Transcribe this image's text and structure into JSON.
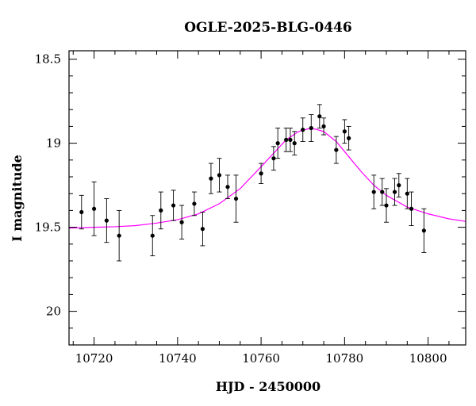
{
  "chart_data": {
    "type": "scatter",
    "title": "OGLE-2025-BLG-0446",
    "xlabel": "HJD - 2450000",
    "ylabel": "I magnitude",
    "xlim": [
      10714,
      10809
    ],
    "ylim": [
      20.2,
      18.45
    ],
    "y_inverted": true,
    "xticks": [
      10720,
      10740,
      10760,
      10780,
      10800
    ],
    "yticks": [
      18.5,
      19,
      19.5,
      20
    ],
    "ytick_labels": [
      "18.5",
      "19",
      "19.5",
      "20"
    ],
    "grid": false,
    "series": [
      {
        "kind": "points_with_errorbars",
        "color": "#000000",
        "points": [
          {
            "x": 10717,
            "y": 19.41,
            "err": 0.1
          },
          {
            "x": 10720,
            "y": 19.39,
            "err": 0.16
          },
          {
            "x": 10723,
            "y": 19.46,
            "err": 0.13
          },
          {
            "x": 10726,
            "y": 19.55,
            "err": 0.15
          },
          {
            "x": 10734,
            "y": 19.55,
            "err": 0.12
          },
          {
            "x": 10736,
            "y": 19.4,
            "err": 0.11
          },
          {
            "x": 10739,
            "y": 19.37,
            "err": 0.09
          },
          {
            "x": 10741,
            "y": 19.47,
            "err": 0.1
          },
          {
            "x": 10744,
            "y": 19.36,
            "err": 0.07
          },
          {
            "x": 10746,
            "y": 19.51,
            "err": 0.1
          },
          {
            "x": 10748,
            "y": 19.21,
            "err": 0.09
          },
          {
            "x": 10750,
            "y": 19.19,
            "err": 0.1
          },
          {
            "x": 10752,
            "y": 19.26,
            "err": 0.07
          },
          {
            "x": 10754,
            "y": 19.33,
            "err": 0.14
          },
          {
            "x": 10760,
            "y": 19.18,
            "err": 0.06
          },
          {
            "x": 10763,
            "y": 19.09,
            "err": 0.07
          },
          {
            "x": 10764,
            "y": 19.0,
            "err": 0.09
          },
          {
            "x": 10766,
            "y": 18.98,
            "err": 0.07
          },
          {
            "x": 10767,
            "y": 18.98,
            "err": 0.07
          },
          {
            "x": 10768,
            "y": 19.0,
            "err": 0.07
          },
          {
            "x": 10770,
            "y": 18.92,
            "err": 0.07
          },
          {
            "x": 10772,
            "y": 18.91,
            "err": 0.08
          },
          {
            "x": 10774,
            "y": 18.84,
            "err": 0.07
          },
          {
            "x": 10775,
            "y": 18.9,
            "err": 0.05
          },
          {
            "x": 10778,
            "y": 19.04,
            "err": 0.08
          },
          {
            "x": 10780,
            "y": 18.93,
            "err": 0.07
          },
          {
            "x": 10781,
            "y": 18.97,
            "err": 0.07
          },
          {
            "x": 10787,
            "y": 19.29,
            "err": 0.1
          },
          {
            "x": 10789,
            "y": 19.29,
            "err": 0.08
          },
          {
            "x": 10790,
            "y": 19.37,
            "err": 0.1
          },
          {
            "x": 10792,
            "y": 19.29,
            "err": 0.08
          },
          {
            "x": 10793,
            "y": 19.25,
            "err": 0.07
          },
          {
            "x": 10795,
            "y": 19.3,
            "err": 0.09
          },
          {
            "x": 10796,
            "y": 19.39,
            "err": 0.1
          },
          {
            "x": 10799,
            "y": 19.52,
            "err": 0.13
          }
        ]
      },
      {
        "kind": "model_line",
        "color": "#ff00ff",
        "x": [
          10714,
          10720,
          10725,
          10730,
          10735,
          10740,
          10745,
          10750,
          10755,
          10760,
          10763,
          10766,
          10769,
          10772,
          10775,
          10778,
          10781,
          10784,
          10787,
          10790,
          10795,
          10800,
          10805,
          10809
        ],
        "y": [
          19.505,
          19.5,
          19.497,
          19.49,
          19.475,
          19.455,
          19.42,
          19.36,
          19.27,
          19.14,
          19.06,
          18.98,
          18.93,
          18.91,
          18.93,
          18.99,
          19.08,
          19.17,
          19.25,
          19.31,
          19.38,
          19.42,
          19.45,
          19.465
        ]
      }
    ]
  }
}
